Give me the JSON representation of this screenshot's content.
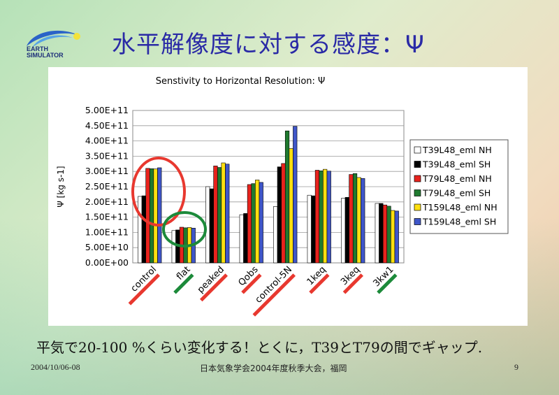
{
  "slide": {
    "title": "水平解像度に対する感度：Ψ",
    "logo_text": [
      "EARTH",
      "SIMULATOR"
    ],
    "message": "平気で20-100 %くらい変化する！とくに，T39とT79の間でギャップ.",
    "date": "2004/10/06-08",
    "conference": "日本気象学会2004年度秋季大会，福岡",
    "page": "9"
  },
  "colors": {
    "title": "#2a2aa6",
    "annotation_red": "#e8382f",
    "annotation_green": "#1c8a3a"
  },
  "chart_data": {
    "type": "bar",
    "title": "Senstivity to Horizontal Resolution: Ψ",
    "ylabel": "Ψ [kg s-1]",
    "ylim": [
      0,
      500000000000.0
    ],
    "yticks": [
      0,
      50000000000.0,
      100000000000.0,
      150000000000.0,
      200000000000.0,
      250000000000.0,
      300000000000.0,
      350000000000.0,
      400000000000.0,
      450000000000.0,
      500000000000.0
    ],
    "ytick_labels": [
      "0.00E+00",
      "5.00E+10",
      "1.00E+11",
      "1.50E+11",
      "2.00E+11",
      "2.50E+11",
      "3.00E+11",
      "3.50E+11",
      "4.00E+11",
      "4.50E+11",
      "5.00E+11"
    ],
    "grid": true,
    "legend_position": "right",
    "categories": [
      "control",
      "flat",
      "peaked",
      "Qobs",
      "control-5N",
      "1keq",
      "3keq",
      "3kw1"
    ],
    "category_underline_colors": [
      "#e8382f",
      "#1c8a3a",
      "#e8382f",
      "#e8382f",
      "#e8382f",
      "#e8382f",
      "#e8382f",
      "#1c8a3a"
    ],
    "series": [
      {
        "name": "T39L48_eml NH",
        "color": "#ffffff",
        "values": [
          218000000000.0,
          106000000000.0,
          250000000000.0,
          158000000000.0,
          185000000000.0,
          222000000000.0,
          212000000000.0,
          195000000000.0
        ]
      },
      {
        "name": "T39L48_eml SH",
        "color": "#000000",
        "values": [
          220000000000.0,
          108000000000.0,
          243000000000.0,
          162000000000.0,
          315000000000.0,
          220000000000.0,
          215000000000.0,
          195000000000.0
        ]
      },
      {
        "name": "T79L48_eml NH",
        "color": "#e8231d",
        "values": [
          310000000000.0,
          117000000000.0,
          318000000000.0,
          257000000000.0,
          326000000000.0,
          304000000000.0,
          290000000000.0,
          190000000000.0
        ]
      },
      {
        "name": "T79L48_eml SH",
        "color": "#1f7a2f",
        "values": [
          309000000000.0,
          115000000000.0,
          313000000000.0,
          260000000000.0,
          433000000000.0,
          302000000000.0,
          293000000000.0,
          186000000000.0
        ]
      },
      {
        "name": "T159L48_eml NH",
        "color": "#ffe010",
        "values": [
          308000000000.0,
          116000000000.0,
          328000000000.0,
          272000000000.0,
          375000000000.0,
          307000000000.0,
          280000000000.0,
          172000000000.0
        ]
      },
      {
        "name": "T159L48_eml SH",
        "color": "#3f56c9",
        "values": [
          312000000000.0,
          114000000000.0,
          324000000000.0,
          264000000000.0,
          448000000000.0,
          301000000000.0,
          277000000000.0,
          170000000000.0
        ]
      }
    ]
  }
}
